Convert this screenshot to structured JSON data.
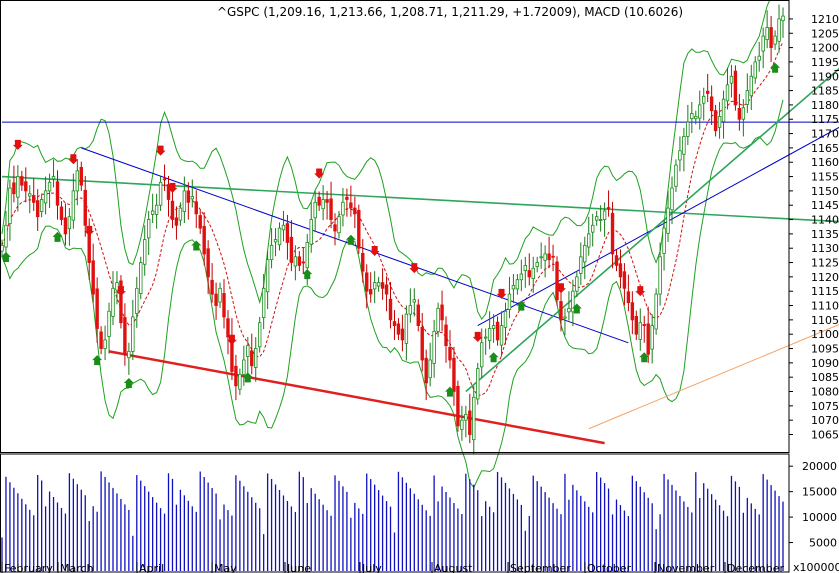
{
  "chart_data": {
    "type": "candlestick",
    "title": "^GSPC (1,209.16, 1,213.66, 1,208.71, 1,211.29, +1.72009), MACD (10.6026)",
    "last_bar": {
      "open": 1209.16,
      "high": 1213.66,
      "low": 1208.71,
      "close": 1211.29,
      "change": 1.72009
    },
    "macd_value": 10.6026,
    "months": [
      "February",
      "March",
      "April",
      "May",
      "June",
      "July",
      "August",
      "September",
      "October",
      "November",
      "December"
    ],
    "price_axis": {
      "min": 1060,
      "max": 1215,
      "step": 5,
      "ticks": [
        1065,
        1070,
        1075,
        1080,
        1085,
        1090,
        1095,
        1100,
        1105,
        1110,
        1115,
        1120,
        1125,
        1130,
        1135,
        1140,
        1145,
        1150,
        1155,
        1160,
        1165,
        1170,
        1175,
        1180,
        1185,
        1190,
        1195,
        1200,
        1205,
        1210
      ]
    },
    "volume_axis": {
      "min": 0,
      "max": 22000,
      "ticks": [
        5000,
        10000,
        15000,
        20000
      ],
      "unit_label": "x100000"
    },
    "trend_lines": [
      {
        "color": "#0000cc",
        "from": {
          "bar": 0,
          "price": 1174
        },
        "to": {
          "bar": 231,
          "price": 1174
        }
      },
      {
        "color": "#2ea55a",
        "from": {
          "bar": 0,
          "price": 1155
        },
        "to": {
          "bar": 215,
          "price": 1139
        }
      },
      {
        "color": "#0000cc",
        "from": {
          "bar": 20,
          "price": 1165
        },
        "to": {
          "bar": 158,
          "price": 1097
        }
      },
      {
        "color": "#e02020",
        "from": {
          "bar": 27,
          "price": 1094
        },
        "to": {
          "bar": 152,
          "price": 1062
        }
      },
      {
        "color": "#0000cc",
        "from": {
          "bar": 120,
          "price": 1103
        },
        "to": {
          "bar": 232,
          "price": 1188
        }
      },
      {
        "color": "#2ea55a",
        "from": {
          "bar": 117,
          "price": 1080
        },
        "to": {
          "bar": 229,
          "price": 1214
        }
      },
      {
        "color": "#f4a46a",
        "from": {
          "bar": 148,
          "price": 1067
        },
        "to": {
          "bar": 214,
          "price": 1105
        }
      },
      {
        "color": "#000000",
        "from": {
          "bar": 210,
          "price": 1192
        },
        "to": {
          "bar": 233,
          "price": 1192
        }
      }
    ],
    "close_series": [
      1131,
      1138,
      1151,
      1149,
      1155,
      1152,
      1150,
      1149,
      1146,
      1141,
      1147,
      1150,
      1153,
      1155,
      1145,
      1140,
      1135,
      1141,
      1150,
      1157,
      1152,
      1138,
      1125,
      1114,
      1102,
      1095,
      1098,
      1108,
      1116,
      1118,
      1104,
      1093,
      1094,
      1106,
      1116,
      1125,
      1133,
      1140,
      1143,
      1145,
      1153,
      1154,
      1147,
      1140,
      1138,
      1144,
      1150,
      1146,
      1148,
      1142,
      1137,
      1128,
      1120,
      1114,
      1110,
      1116,
      1106,
      1099,
      1087,
      1082,
      1086,
      1091,
      1096,
      1089,
      1095,
      1104,
      1116,
      1126,
      1131,
      1133,
      1137,
      1138,
      1132,
      1125,
      1127,
      1124,
      1125,
      1132,
      1140,
      1146,
      1145,
      1147,
      1146,
      1140,
      1136,
      1141,
      1146,
      1147,
      1144,
      1142,
      1130,
      1122,
      1115,
      1114,
      1118,
      1118,
      1116,
      1114,
      1105,
      1103,
      1100,
      1098,
      1107,
      1110,
      1112,
      1103,
      1091,
      1083,
      1091,
      1101,
      1109,
      1105,
      1096,
      1091,
      1080,
      1068,
      1070,
      1072,
      1065,
      1078,
      1088,
      1097,
      1099,
      1102,
      1103,
      1098,
      1103,
      1108,
      1114,
      1117,
      1119,
      1121,
      1124,
      1120,
      1123,
      1125,
      1127,
      1128,
      1126,
      1127,
      1112,
      1105,
      1106,
      1109,
      1115,
      1120,
      1127,
      1131,
      1135,
      1138,
      1141,
      1140,
      1143,
      1144,
      1128,
      1124,
      1120,
      1116,
      1111,
      1105,
      1100,
      1104,
      1103,
      1093,
      1103,
      1114,
      1127,
      1137,
      1144,
      1151,
      1159,
      1164,
      1169,
      1174,
      1177,
      1176,
      1180,
      1183,
      1184,
      1178,
      1171,
      1176,
      1182,
      1187,
      1190,
      1180,
      1175,
      1179,
      1185,
      1190,
      1195,
      1197,
      1204,
      1207,
      1200,
      1204,
      1210,
      1211
    ]
  }
}
